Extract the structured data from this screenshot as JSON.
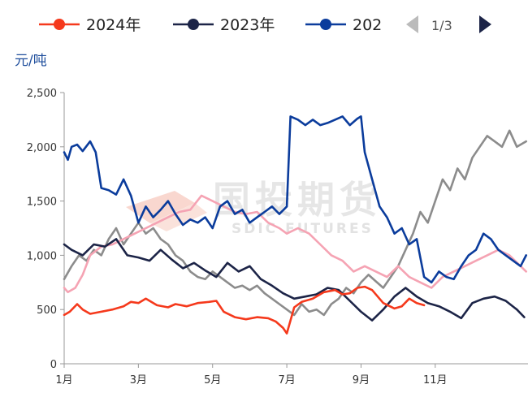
{
  "legend": {
    "items": [
      {
        "label": "2024年",
        "color": "#f5391c"
      },
      {
        "label": "2023年",
        "color": "#1c2447"
      },
      {
        "label": "202",
        "color": "#0b3c9c"
      }
    ],
    "pager": "1/3"
  },
  "watermark": {
    "cn": "国投期货",
    "en": "SDIC FUTURES"
  },
  "chart_data": {
    "type": "line",
    "ylabel": "元/吨",
    "ylim": [
      0,
      2500
    ],
    "yticks": [
      0,
      500,
      1000,
      1500,
      2000,
      2500
    ],
    "ytick_labels": [
      "0",
      "500",
      "1,000",
      "1,500",
      "2,000",
      "2,500"
    ],
    "xticks": [
      1,
      3,
      5,
      7,
      9,
      11
    ],
    "xtick_labels": [
      "1月",
      "3月",
      "5月",
      "7月",
      "9月",
      "11月"
    ],
    "xlim": [
      1,
      13.5
    ],
    "grid": false,
    "legend_position": "top",
    "series": [
      {
        "name": "2024年",
        "color": "#f5391c",
        "x": [
          1,
          1.15,
          1.35,
          1.5,
          1.7,
          2,
          2.3,
          2.6,
          2.8,
          3,
          3.2,
          3.5,
          3.8,
          4,
          4.3,
          4.6,
          4.9,
          5.1,
          5.3,
          5.6,
          5.9,
          6.2,
          6.5,
          6.7,
          6.9,
          7.0,
          7.2,
          7.4,
          7.7,
          8.0,
          8.3,
          8.5,
          8.7,
          8.9,
          9.1,
          9.3,
          9.6,
          9.9,
          10.1,
          10.3,
          10.5,
          10.7
        ],
        "values": [
          450,
          480,
          550,
          500,
          460,
          480,
          500,
          530,
          570,
          560,
          600,
          540,
          520,
          550,
          530,
          560,
          570,
          580,
          480,
          430,
          410,
          430,
          420,
          390,
          330,
          280,
          520,
          570,
          600,
          660,
          680,
          640,
          650,
          700,
          710,
          680,
          560,
          510,
          530,
          600,
          560,
          540
        ]
      },
      {
        "name": "2023年",
        "color": "#1c2447",
        "x": [
          1,
          1.2,
          1.5,
          1.8,
          2.1,
          2.4,
          2.7,
          3,
          3.3,
          3.6,
          3.9,
          4.2,
          4.5,
          4.8,
          5.1,
          5.4,
          5.7,
          6.0,
          6.3,
          6.6,
          6.9,
          7.2,
          7.5,
          7.8,
          8.1,
          8.4,
          8.7,
          9.0,
          9.3,
          9.6,
          9.9,
          10.2,
          10.5,
          10.8,
          11.1,
          11.4,
          11.7,
          12.0,
          12.3,
          12.6,
          12.9,
          13.2,
          13.4
        ],
        "values": [
          1100,
          1050,
          1000,
          1100,
          1080,
          1150,
          1000,
          980,
          950,
          1050,
          960,
          880,
          930,
          860,
          800,
          930,
          850,
          900,
          780,
          720,
          650,
          600,
          620,
          640,
          700,
          680,
          580,
          480,
          400,
          500,
          620,
          700,
          620,
          560,
          530,
          480,
          420,
          560,
          600,
          620,
          580,
          500,
          430
        ]
      },
      {
        "name": "202",
        "color": "#0b3c9c",
        "x": [
          1,
          1.1,
          1.2,
          1.35,
          1.5,
          1.7,
          1.85,
          2.0,
          2.2,
          2.4,
          2.6,
          2.8,
          3.0,
          3.2,
          3.4,
          3.6,
          3.8,
          4.0,
          4.2,
          4.4,
          4.6,
          4.8,
          5.0,
          5.2,
          5.4,
          5.6,
          5.8,
          6.0,
          6.2,
          6.4,
          6.6,
          6.8,
          7.0,
          7.1,
          7.3,
          7.5,
          7.7,
          7.9,
          8.1,
          8.3,
          8.5,
          8.7,
          8.9,
          9.0,
          9.1,
          9.3,
          9.5,
          9.7,
          9.9,
          10.1,
          10.3,
          10.5,
          10.7,
          10.9,
          11.1,
          11.3,
          11.5,
          11.7,
          11.9,
          12.1,
          12.3,
          12.5,
          12.7,
          12.9,
          13.1,
          13.3,
          13.45
        ],
        "values": [
          1950,
          1880,
          2000,
          2020,
          1960,
          2050,
          1950,
          1620,
          1600,
          1560,
          1700,
          1550,
          1300,
          1450,
          1350,
          1420,
          1500,
          1380,
          1280,
          1330,
          1300,
          1350,
          1250,
          1450,
          1500,
          1380,
          1420,
          1300,
          1350,
          1400,
          1450,
          1380,
          1450,
          2280,
          2250,
          2200,
          2250,
          2200,
          2220,
          2250,
          2280,
          2200,
          2260,
          2280,
          1950,
          1700,
          1450,
          1350,
          1200,
          1250,
          1100,
          1150,
          800,
          750,
          850,
          800,
          780,
          900,
          1000,
          1050,
          1200,
          1150,
          1050,
          1000,
          950,
          900,
          1000
        ]
      },
      {
        "color": "#f5a3b3",
        "x": [
          1,
          1.1,
          1.3,
          1.5,
          1.7,
          2.0,
          2.3,
          2.6,
          2.9,
          3.2,
          3.5,
          3.8,
          4.1,
          4.4,
          4.7,
          5.0,
          5.3,
          5.6,
          5.9,
          6.2,
          6.5,
          6.8,
          7.0,
          7.3,
          7.6,
          7.9,
          8.2,
          8.5,
          8.8,
          9.1,
          9.4,
          9.7,
          10.0,
          10.3,
          10.6,
          10.9,
          11.2,
          11.5,
          11.8,
          12.1,
          12.4,
          12.7,
          13.0,
          13.3,
          13.45
        ],
        "values": [
          700,
          660,
          700,
          820,
          1000,
          1080,
          1100,
          1150,
          1200,
          1250,
          1300,
          1350,
          1400,
          1420,
          1550,
          1500,
          1450,
          1400,
          1380,
          1400,
          1300,
          1250,
          1200,
          1250,
          1200,
          1100,
          1000,
          950,
          850,
          900,
          850,
          800,
          900,
          800,
          750,
          700,
          800,
          850,
          900,
          950,
          1000,
          1050,
          1000,
          900,
          850
        ]
      },
      {
        "color": "#8c8c8c",
        "x": [
          1,
          1.2,
          1.4,
          1.6,
          1.8,
          2.0,
          2.2,
          2.4,
          2.6,
          2.8,
          3.0,
          3.2,
          3.4,
          3.6,
          3.8,
          4.0,
          4.2,
          4.4,
          4.6,
          4.8,
          5.0,
          5.2,
          5.4,
          5.6,
          5.8,
          6.0,
          6.2,
          6.4,
          6.6,
          6.8,
          7.0,
          7.2,
          7.4,
          7.6,
          7.8,
          8.0,
          8.2,
          8.4,
          8.6,
          8.8,
          9.0,
          9.2,
          9.4,
          9.6,
          9.8,
          10.0,
          10.2,
          10.4,
          10.6,
          10.8,
          11.0,
          11.2,
          11.4,
          11.6,
          11.8,
          12.0,
          12.2,
          12.4,
          12.6,
          12.8,
          13.0,
          13.2,
          13.45
        ],
        "values": [
          780,
          900,
          1000,
          950,
          1050,
          1000,
          1150,
          1250,
          1100,
          1200,
          1300,
          1200,
          1250,
          1150,
          1100,
          1000,
          950,
          850,
          800,
          780,
          850,
          800,
          750,
          700,
          720,
          680,
          720,
          650,
          600,
          550,
          500,
          450,
          550,
          480,
          500,
          450,
          550,
          600,
          700,
          650,
          750,
          820,
          760,
          700,
          800,
          900,
          1050,
          1200,
          1400,
          1300,
          1500,
          1700,
          1600,
          1800,
          1700,
          1900,
          2000,
          2100,
          2050,
          2000,
          2150,
          2000,
          2050
        ]
      }
    ]
  }
}
